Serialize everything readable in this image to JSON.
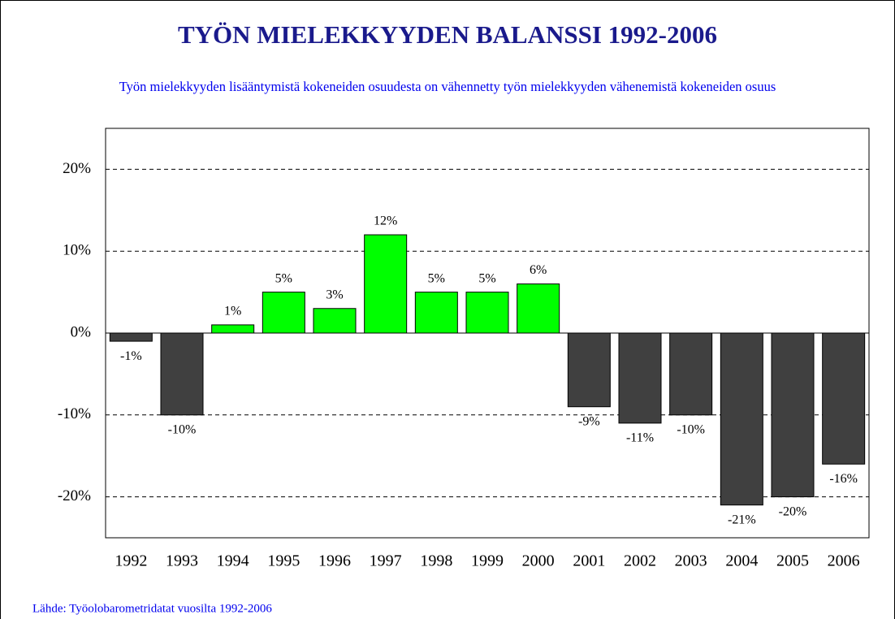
{
  "chart_data": {
    "type": "bar",
    "title": "TYÖN MIELEKKYYDEN BALANSSI 1992-2006",
    "subtitle": "Työn mielekkyyden lisääntymistä kokeneiden osuudesta on vähennetty työn mielekkyyden vähenemistä kokeneiden osuus",
    "source": "Lähde: Työolobarometridatat vuosilta 1992-2006",
    "categories": [
      "1992",
      "1993",
      "1994",
      "1995",
      "1996",
      "1997",
      "1998",
      "1999",
      "2000",
      "2001",
      "2002",
      "2003",
      "2004",
      "2005",
      "2006"
    ],
    "values": [
      -1,
      -10,
      1,
      5,
      3,
      12,
      5,
      5,
      6,
      -9,
      -11,
      -10,
      -21,
      -20,
      -16
    ],
    "value_labels": [
      "-1%",
      "-10%",
      "1%",
      "5%",
      "3%",
      "12%",
      "5%",
      "5%",
      "6%",
      "-9%",
      "-11%",
      "-10%",
      "-21%",
      "-20%",
      "-16%"
    ],
    "positive_color": "#00ff00",
    "negative_color": "#404040",
    "ylim": [
      -25,
      25
    ],
    "yticks": [
      {
        "value": -20,
        "label": "-20%"
      },
      {
        "value": -10,
        "label": "-10%"
      },
      {
        "value": 0,
        "label": "0%"
      },
      {
        "value": 10,
        "label": "10%"
      },
      {
        "value": 20,
        "label": "20%"
      }
    ],
    "grid": true
  }
}
